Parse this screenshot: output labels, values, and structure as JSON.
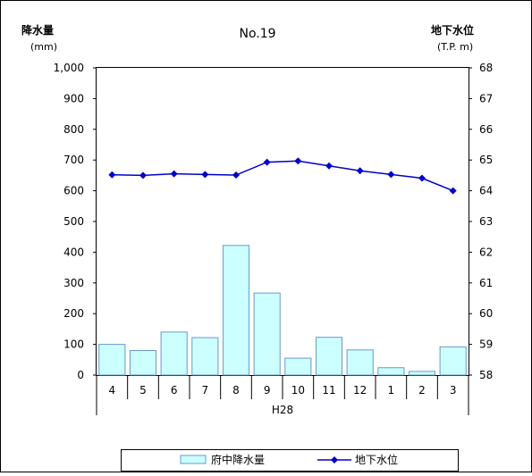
{
  "chart_data": {
    "type": "bar+line",
    "title": "No.19",
    "left_axis": {
      "label": "降水量",
      "unit": "(mm)",
      "range": [
        0,
        1000
      ],
      "ticks": [
        "0",
        "100",
        "200",
        "300",
        "400",
        "500",
        "600",
        "700",
        "800",
        "900",
        "1,000"
      ]
    },
    "right_axis": {
      "label": "地下水位",
      "unit": "(T.P. m)",
      "range": [
        58,
        68
      ],
      "ticks": [
        "58",
        "59",
        "60",
        "61",
        "62",
        "63",
        "64",
        "65",
        "66",
        "67",
        "68"
      ]
    },
    "x_categories": [
      "4",
      "5",
      "6",
      "7",
      "8",
      "9",
      "10",
      "11",
      "12",
      "1",
      "2",
      "3"
    ],
    "x_group_label": "H28",
    "series": [
      {
        "name": "府中降水量",
        "type": "bar",
        "axis": "left",
        "color": "#ccffff",
        "values": [
          100,
          80,
          140,
          122,
          422,
          267,
          55,
          123,
          82,
          24,
          12,
          92
        ]
      },
      {
        "name": "地下水位",
        "type": "line",
        "axis": "right",
        "color": "#0000cc",
        "values": [
          64.52,
          64.5,
          64.55,
          64.53,
          64.51,
          64.93,
          64.97,
          64.81,
          64.65,
          64.53,
          64.41,
          64.0
        ]
      }
    ],
    "grid": false,
    "legend_position": "bottom"
  }
}
